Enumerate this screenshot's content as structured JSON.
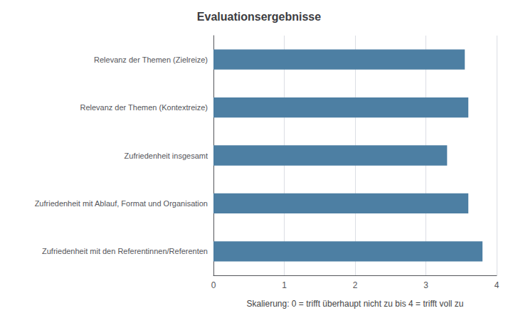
{
  "chart_data": {
    "type": "bar",
    "orientation": "horizontal",
    "title": "Evaluationsergebnisse",
    "categories": [
      "Zufriedenheit mit den Referentinnen/Referenten",
      "Zufriedenheit mit Ablauf, Format und Organisation",
      "Zufriedenheit insgesamt",
      "Relevanz der Themen (Kontextreize)",
      "Relevanz der Themen (Zielreize)"
    ],
    "values": [
      3.8,
      3.6,
      3.3,
      3.6,
      3.55
    ],
    "color": "#4d7fa3",
    "xlabel": "Skalierung: 0 = trifft überhaupt nicht zu bis 4 = trifft voll zu",
    "xlim": [
      0,
      4
    ],
    "xticks": [
      0,
      1,
      2,
      3,
      4
    ],
    "grid": true
  }
}
